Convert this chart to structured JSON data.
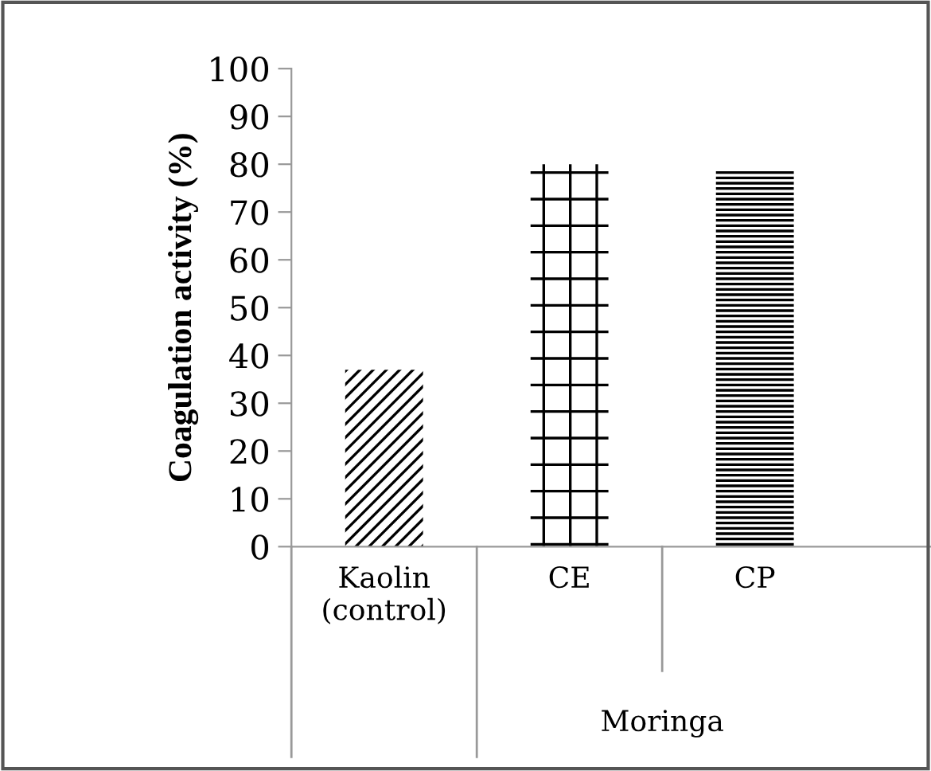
{
  "chart_data": {
    "type": "bar",
    "categories": [
      "Kaolin\n(control)",
      "CE",
      "CP"
    ],
    "values": [
      37,
      80,
      79
    ],
    "colors": [
      "#000000",
      "#000000",
      "#000000"
    ],
    "ylabel": "Coagulation activity (%)",
    "ylim": [
      0,
      100
    ],
    "yticks": [
      0,
      10,
      20,
      30,
      40,
      50,
      60,
      70,
      80,
      90,
      100
    ],
    "annotations": [
      "Moringa"
    ],
    "grid": false,
    "legend": false
  }
}
